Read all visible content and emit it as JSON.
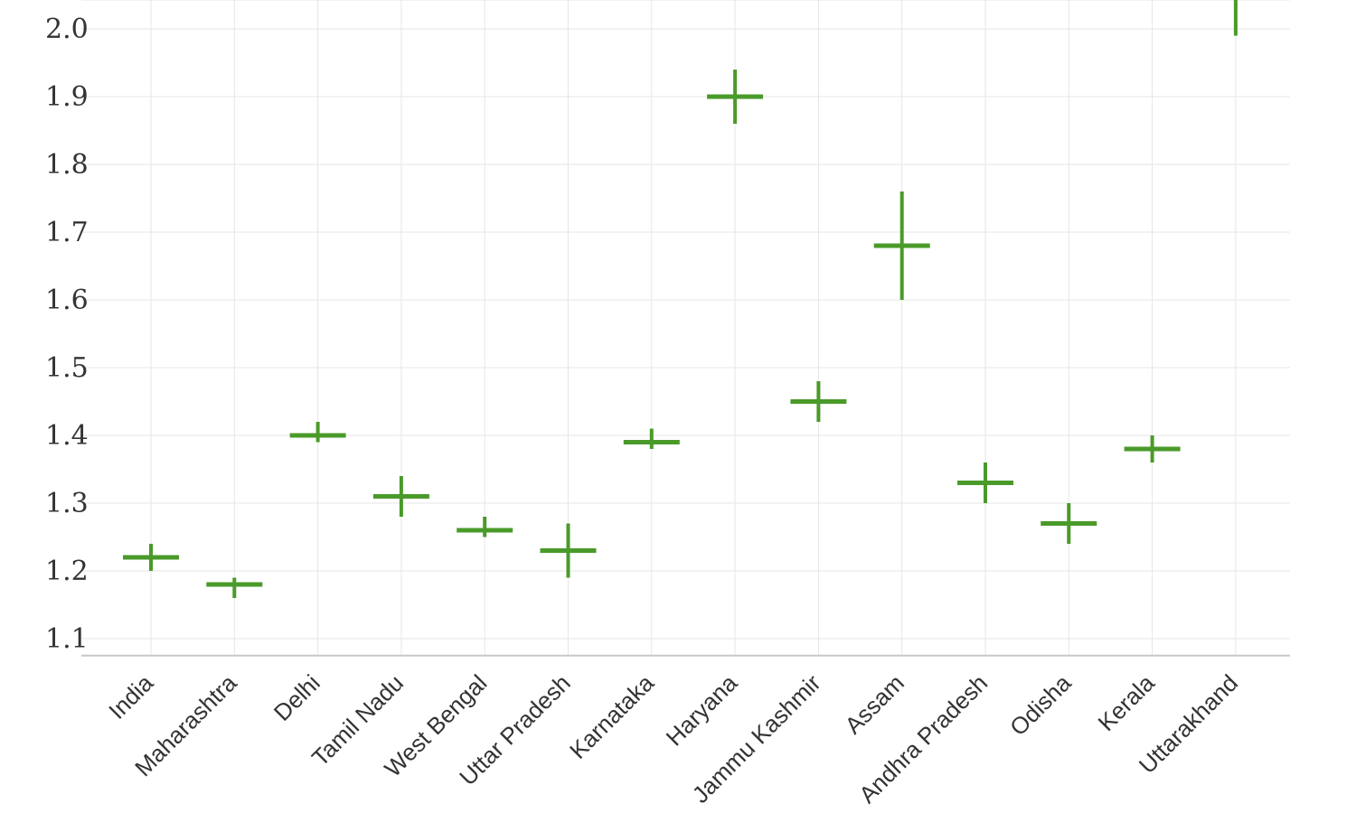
{
  "chart_data": {
    "type": "errorbar",
    "title": "",
    "xlabel": "",
    "ylabel": "",
    "categories": [
      "India",
      "Maharashtra",
      "Delhi",
      "Tamil Nadu",
      "West Bengal",
      "Uttar Pradesh",
      "Karnataka",
      "Haryana",
      "Jammu Kashmir",
      "Assam",
      "Andhra Pradesh",
      "Odisha",
      "Kerala",
      "Uttarakhand"
    ],
    "series": [
      {
        "values": [
          1.22,
          1.18,
          1.4,
          1.31,
          1.26,
          1.23,
          1.39,
          1.9,
          1.45,
          1.68,
          1.33,
          1.27,
          1.38,
          2.07
        ],
        "lower": [
          1.2,
          1.16,
          1.39,
          1.28,
          1.25,
          1.19,
          1.38,
          1.86,
          1.42,
          1.6,
          1.3,
          1.24,
          1.36,
          1.99
        ],
        "upper": [
          1.24,
          1.19,
          1.42,
          1.34,
          1.28,
          1.27,
          1.41,
          1.94,
          1.48,
          1.76,
          1.36,
          1.3,
          1.4,
          2.09
        ]
      }
    ],
    "ylim": [
      1.075,
      2.075
    ],
    "yticks": [
      "1.1",
      "1.2",
      "1.3",
      "1.4",
      "1.5",
      "1.6",
      "1.7",
      "1.8",
      "1.9",
      "2.0"
    ],
    "grid": true,
    "colors": {
      "marker": "#4a9a2a",
      "grid": "#e6e6e6",
      "axis": "#c8c8c8"
    }
  }
}
